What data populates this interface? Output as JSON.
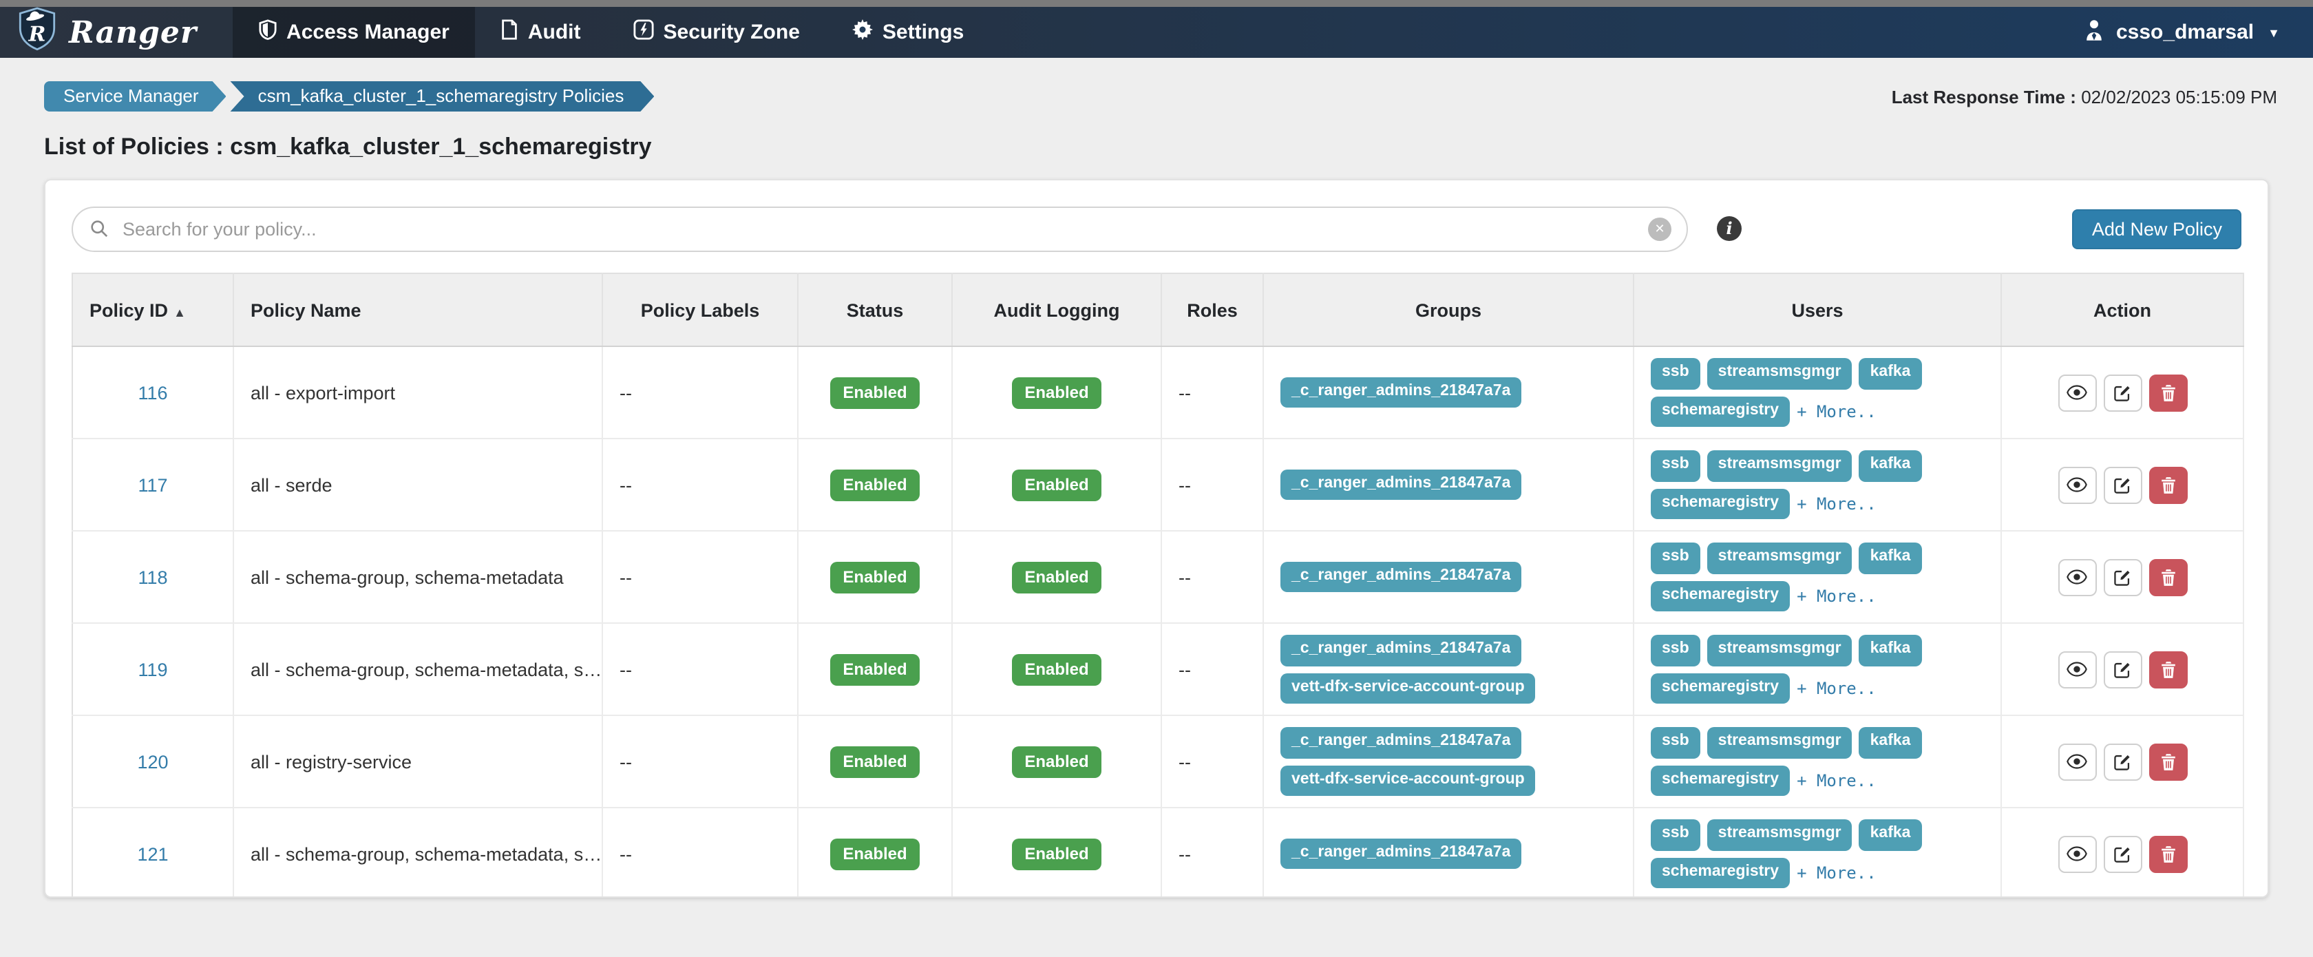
{
  "navbar": {
    "brand": "Ranger",
    "items": [
      {
        "label": "Access Manager",
        "icon": "shield-icon",
        "active": true
      },
      {
        "label": "Audit",
        "icon": "file-icon",
        "active": false
      },
      {
        "label": "Security Zone",
        "icon": "bolt-icon",
        "active": false
      },
      {
        "label": "Settings",
        "icon": "gear-icon",
        "active": false
      }
    ],
    "user": {
      "name": "csso_dmarsal",
      "icon": "user-tie-icon",
      "caret_icon": "▼"
    }
  },
  "breadcrumb": {
    "items": [
      "Service Manager",
      "csm_kafka_cluster_1_schemaregistry Policies"
    ]
  },
  "last_response": {
    "label": "Last Response Time :",
    "value": "02/02/2023 05:15:09 PM"
  },
  "page_title": "List of Policies : csm_kafka_cluster_1_schemaregistry",
  "toolbar": {
    "search_placeholder": "Search for your policy...",
    "clear_icon": "✕",
    "info_icon": "i",
    "add_button_label": "Add New Policy"
  },
  "table": {
    "columns": [
      "Policy ID",
      "Policy Name",
      "Policy Labels",
      "Status",
      "Audit Logging",
      "Roles",
      "Groups",
      "Users",
      "Action"
    ],
    "sort_icon": "▲",
    "more_label": "+ More..",
    "rows": [
      {
        "id": "116",
        "name": "all - export-import",
        "labels": "--",
        "status": "Enabled",
        "audit": "Enabled",
        "roles": "--",
        "groups": [
          "_c_ranger_admins_21847a7a"
        ],
        "users": [
          "ssb",
          "streamsmsgmgr",
          "kafka",
          "schemaregistry"
        ]
      },
      {
        "id": "117",
        "name": "all - serde",
        "labels": "--",
        "status": "Enabled",
        "audit": "Enabled",
        "roles": "--",
        "groups": [
          "_c_ranger_admins_21847a7a"
        ],
        "users": [
          "ssb",
          "streamsmsgmgr",
          "kafka",
          "schemaregistry"
        ]
      },
      {
        "id": "118",
        "name": "all - schema-group, schema-metadata",
        "labels": "--",
        "status": "Enabled",
        "audit": "Enabled",
        "roles": "--",
        "groups": [
          "_c_ranger_admins_21847a7a"
        ],
        "users": [
          "ssb",
          "streamsmsgmgr",
          "kafka",
          "schemaregistry"
        ]
      },
      {
        "id": "119",
        "name": "all - schema-group, schema-metadata, s…",
        "labels": "--",
        "status": "Enabled",
        "audit": "Enabled",
        "roles": "--",
        "groups": [
          "_c_ranger_admins_21847a7a",
          "vett-dfx-service-account-group"
        ],
        "users": [
          "ssb",
          "streamsmsgmgr",
          "kafka",
          "schemaregistry"
        ]
      },
      {
        "id": "120",
        "name": "all - registry-service",
        "labels": "--",
        "status": "Enabled",
        "audit": "Enabled",
        "roles": "--",
        "groups": [
          "_c_ranger_admins_21847a7a",
          "vett-dfx-service-account-group"
        ],
        "users": [
          "ssb",
          "streamsmsgmgr",
          "kafka",
          "schemaregistry"
        ]
      },
      {
        "id": "121",
        "name": "all - schema-group, schema-metadata, s…",
        "labels": "--",
        "status": "Enabled",
        "audit": "Enabled",
        "roles": "--",
        "groups": [
          "_c_ranger_admins_21847a7a"
        ],
        "users": [
          "ssb",
          "streamsmsgmgr",
          "kafka",
          "schemaregistry"
        ]
      }
    ]
  },
  "colors": {
    "accent_blue": "#2e7fac",
    "badge_teal": "#4f9fb4",
    "badge_green": "#4aa04e",
    "danger_red": "#c9545c",
    "link_blue": "#337ca9",
    "navbar_left": "#2a3340",
    "navbar_right": "#1d3c5f",
    "breadcrumb_primary": "#4189ae",
    "breadcrumb_secondary": "#2e6d94"
  }
}
